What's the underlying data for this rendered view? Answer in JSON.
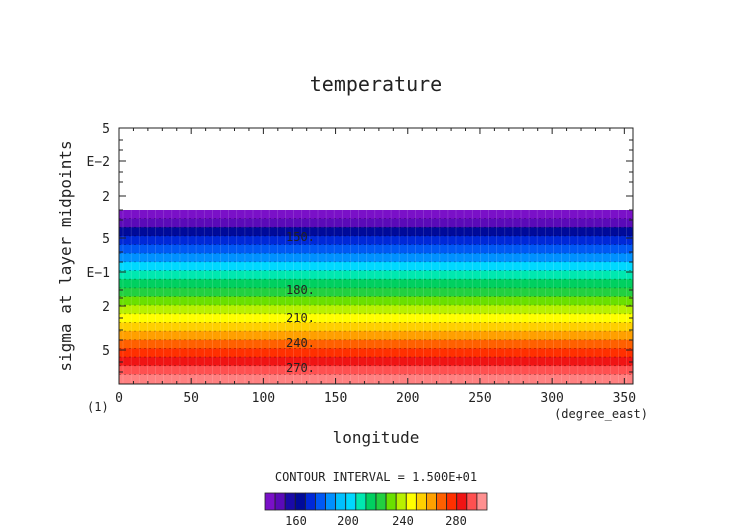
{
  "chart_data": {
    "type": "heatmap",
    "title": "temperature",
    "xlabel": "longitude",
    "ylabel": "sigma at layer midpoints",
    "x_units": "(degree_east)",
    "y_origin_label": "(1)",
    "xlim": [
      0,
      356
    ],
    "x_ticks": [
      0,
      50,
      100,
      150,
      200,
      250,
      300,
      350
    ],
    "x_tick_labels": [
      "0",
      "50",
      "100",
      "150",
      "200",
      "250",
      "300",
      "350"
    ],
    "y_axis_scale": "log",
    "y_tick_labels": [
      "5",
      "E−2",
      "2",
      "5",
      "E−1",
      "2",
      "5"
    ],
    "contour_interval_text": "CONTOUR INTERVAL = 1.500E+01",
    "contour_labels": [
      "150.",
      "180.",
      "210.",
      "240.",
      "270."
    ],
    "colorbar_ticks": [
      "160",
      "200",
      "240",
      "280"
    ],
    "bands": [
      {
        "value": 142,
        "color": "#7a10c8"
      },
      {
        "value": 150,
        "color": "#5a0ab8"
      },
      {
        "value": 157,
        "color": "#000a9a"
      },
      {
        "value": 165,
        "color": "#0028d8"
      },
      {
        "value": 172,
        "color": "#0058f4"
      },
      {
        "value": 180,
        "color": "#0090ff"
      },
      {
        "value": 187,
        "color": "#00d8ff"
      },
      {
        "value": 195,
        "color": "#00e8b0"
      },
      {
        "value": 202,
        "color": "#00d060"
      },
      {
        "value": 210,
        "color": "#22d040"
      },
      {
        "value": 217,
        "color": "#6ae000"
      },
      {
        "value": 225,
        "color": "#b8f000"
      },
      {
        "value": 232,
        "color": "#ffff00"
      },
      {
        "value": 240,
        "color": "#ffd000"
      },
      {
        "value": 247,
        "color": "#ffa000"
      },
      {
        "value": 255,
        "color": "#ff6000"
      },
      {
        "value": 262,
        "color": "#ff3000"
      },
      {
        "value": 270,
        "color": "#f01414"
      },
      {
        "value": 277,
        "color": "#ff5050"
      },
      {
        "value": 285,
        "color": "#ff8080"
      }
    ],
    "colorbar_colors": [
      "#7a10c8",
      "#5a0ab8",
      "#1a0aa8",
      "#000a9a",
      "#0028d8",
      "#0058f4",
      "#0090ff",
      "#00c0ff",
      "#00d8ff",
      "#00e8b0",
      "#00d060",
      "#22d040",
      "#6ae000",
      "#b8f000",
      "#ffff00",
      "#ffd000",
      "#ffa000",
      "#ff6000",
      "#ff3000",
      "#f01414",
      "#ff5050",
      "#ff9090"
    ]
  }
}
